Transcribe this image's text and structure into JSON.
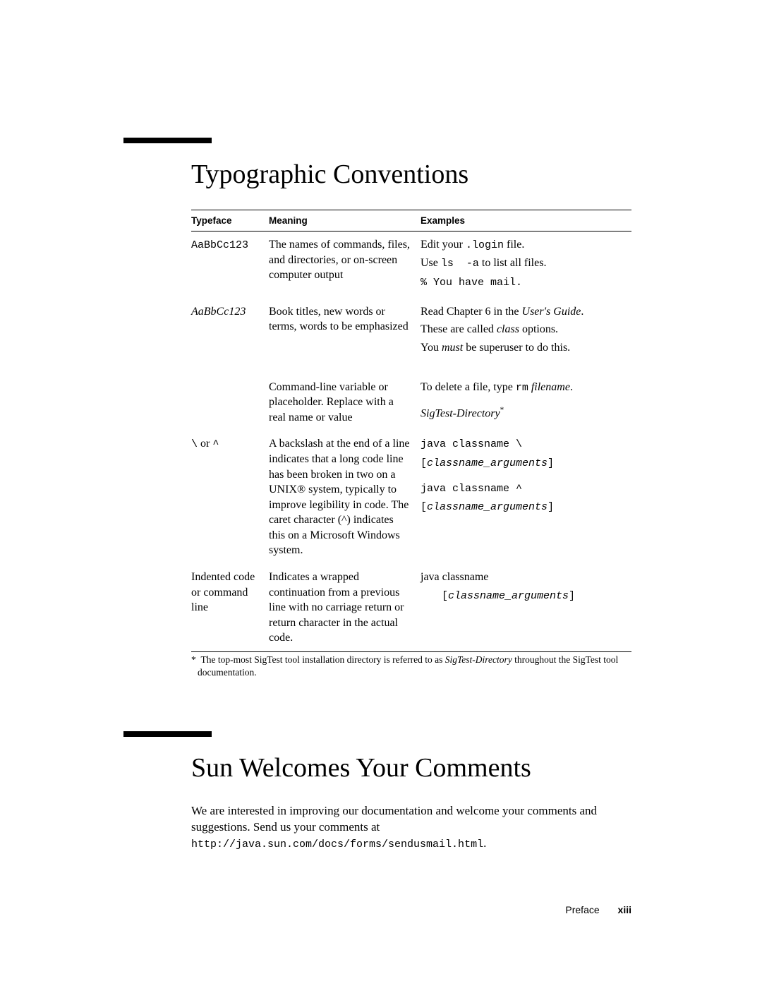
{
  "section1": {
    "heading": "Typographic Conventions",
    "table": {
      "headers": {
        "c1": "Typeface",
        "c2": "Meaning",
        "c3": "Examples"
      },
      "rows": [
        {
          "typeface_html": "<span class=\"mono\">AaBbCc123</span>",
          "meaning": "The names of commands, files, and directories, or on-screen computer output",
          "examples_html": "<div class=\"line\">Edit your <span class=\"mono\">.login</span> file.</div><div class=\"line\">Use <span class=\"mono\">ls&nbsp;&nbsp;-a</span> to list all files.</div><div class=\"line\"><span class=\"mono\">% You have mail.</span></div>"
        },
        {
          "typeface_html": "<span class=\"serif-italic\">AaBbCc123</span>",
          "meaning": "Book titles, new words or terms, words to be emphasized",
          "examples_html": "<div class=\"line\">Read Chapter 6 in the <span class=\"serif-italic\">User's Guide</span>.</div><div class=\"line\">These are called <span class=\"serif-italic\">class</span> options.</div><div class=\"line\">You <span class=\"serif-italic\">must</span> be superuser to do this.</div>"
        },
        {
          "typeface_html": "",
          "meaning": "Command-line variable or placeholder. Replace with a real name or value",
          "examples_html": "<div class=\"line\" style=\"margin-bottom:14px;\">To delete a file, type <span class=\"mono\">rm</span> <span class=\"serif-italic\">filename</span>.</div><div class=\"line\"><span class=\"serif-italic\">SigTest-Directory</span><span class=\"sup\">*</span></div>"
        },
        {
          "typeface_html": "<span class=\"mono\">\\</span> or <span class=\"mono\">^</span>",
          "meaning": "A backslash at the end of a line indicates that a long code line has been broken in two on a UNIX® system, typically to improve legibility in code. The caret character (^) indicates this on a Microsoft Windows system.",
          "examples_html": "<div class=\"line\"><span class=\"mono\">java classname \\</span></div><div class=\"line\" style=\"margin-bottom:14px;\"><span class=\"mono\">[</span><span class=\"mono serif-italic\">classname_arguments</span><span class=\"mono\">]</span></div><div class=\"line\"><span class=\"mono\">java classname ^</span></div><div class=\"line\"><span class=\"mono\">[</span><span class=\"mono serif-italic\">classname_arguments</span><span class=\"mono\">]</span></div>"
        },
        {
          "typeface_html": "Indented code or command line",
          "meaning": "Indicates a wrapped continuation from a previous line with no carriage return or return character in the actual code.",
          "examples_html": "<div class=\"line\">java classname</div><div class=\"line\"><span class=\"indent-code\"><span class=\"mono\">[</span><span class=\"mono serif-italic\">classname_arguments</span><span class=\"mono\">]</span></span></div>"
        }
      ]
    },
    "footnote_html": "*&nbsp;&nbsp;The top-most SigTest tool installation directory is referred to as <span class=\"serif-italic\">SigTest-Directory</span> throughout the SigTest tool documentation."
  },
  "section2": {
    "heading": "Sun Welcomes Your Comments",
    "para_html": "We are interested in improving our documentation and welcome your comments and suggestions. Send us your comments at<br><span class=\"mono\">http://java.sun.com/docs/forms/sendusmail.html</span>."
  },
  "footer": {
    "label": "Preface",
    "page": "xiii"
  }
}
